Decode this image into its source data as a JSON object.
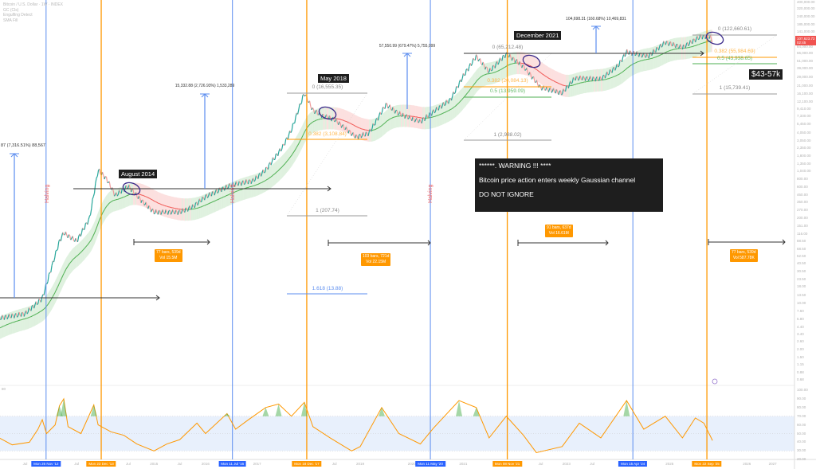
{
  "legend": {
    "symbol": "Bitcoin / U.S. Dollar · 1W · INDEX",
    "indicators": [
      "GC (Cls)",
      "Engulfing Detect",
      "SMA Fill"
    ]
  },
  "colors": {
    "halving_line": "#5b8def",
    "cycle_top_line": "#ff9800",
    "channel_up": "#4caf50",
    "channel_down": "#f05350",
    "rsi_line": "#ff9800",
    "rsi_band": "#e8f0fc",
    "ellipse": "#3a2a8a",
    "price_badge": "#f05350"
  },
  "annotations": {
    "halving_label": "Halving",
    "tags": {
      "aug2014": "August 2014",
      "may2018": "May 2018",
      "dec2021": "December 2021",
      "target": "$43-57k"
    },
    "warning": {
      "line1": "******. WARNING !!! ****",
      "line2": "Bitcoin price action enters weekly Gaussian channel",
      "line3": "DO NOT IGNORE"
    },
    "rallies": [
      "87 (7,316.51%) 88,567",
      "15,332.88 (2,726.93%) 1,533,289",
      "57,550.99 (679.47%) 5,755,099",
      "104,698.31 (160.68%) 10,469,831"
    ],
    "fib_2017": [
      "0 (16,555.35)",
      "0.382 (3,108.84)",
      "1 (207.74)",
      "1.618 (13.88)"
    ],
    "fib_2021": [
      "0 (65,212.48)",
      "0.382 (20,084.13)",
      "0.5 (13,959.09)",
      "1 (2,988.02)"
    ],
    "fib_2025": [
      "0 (122,660.61)",
      "0.382 (55,984.69)",
      "0.5 (43,938.65)",
      "1 (15,739.41)"
    ],
    "measures": [
      {
        "bars": "77 bars, 539d",
        "vol": "Vol 15.5M"
      },
      {
        "bars": "103 bars, 721d",
        "vol": "Vol 22.15M"
      },
      {
        "bars": "91 bars, 637d",
        "vol": "Vol 16.61M"
      },
      {
        "bars": "77 bars, 539d",
        "vol": "Vol 587.78K"
      }
    ]
  },
  "price_axis": {
    "labels": [
      "400,000.00",
      "320,000.00",
      "240,000.00",
      "185,000.00",
      "141,000.00",
      "84,000.00",
      "66,000.00",
      "51,000.00",
      "39,000.00",
      "29,000.00",
      "21,000.00",
      "16,100.00",
      "12,100.00",
      "9,410.00",
      "7,330.00",
      "5,450.00",
      "4,050.00",
      "3,050.00",
      "2,350.00",
      "1,800.00",
      "1,350.00",
      "1,040.00",
      "800.00",
      "600.00",
      "460.00",
      "350.00",
      "270.00",
      "200.00",
      "151.00",
      "116.00",
      "88.50",
      "68.50",
      "52.50",
      "40.50",
      "30.50",
      "23.50",
      "18.00",
      "13.50",
      "10.00",
      "7.60",
      "5.80",
      "4.40",
      "3.40",
      "2.60",
      "2.00",
      "1.50",
      "1.15",
      "0.88",
      "0.68"
    ],
    "current_price": "107,623.72",
    "current_sub": "02:45"
  },
  "rsi_axis": {
    "labels": [
      "100.00",
      "90.00",
      "80.00",
      "70.00",
      "60.00",
      "50.00",
      "40.00",
      "30.00",
      "20.00"
    ],
    "pane_label": "80"
  },
  "time_axis": {
    "ticks": [
      {
        "label": "Jul",
        "date": "2012-07"
      },
      {
        "label": "Jul",
        "date": "2013-07"
      },
      {
        "label": "Jul",
        "date": "2014-07"
      },
      {
        "label": "2015",
        "date": "2015-01"
      },
      {
        "label": "Jul",
        "date": "2015-07"
      },
      {
        "label": "2016",
        "date": "2016-01"
      },
      {
        "label": "2017",
        "date": "2017-01"
      },
      {
        "label": "Jul",
        "date": "2018-07"
      },
      {
        "label": "2019",
        "date": "2019-01"
      },
      {
        "label": "2020",
        "date": "2020-01"
      },
      {
        "label": "2021",
        "date": "2021-01"
      },
      {
        "label": "Jul",
        "date": "2022-07"
      },
      {
        "label": "2023",
        "date": "2023-01"
      },
      {
        "label": "Jul",
        "date": "2023-07"
      },
      {
        "label": "2025",
        "date": "2025-01"
      },
      {
        "label": "2026",
        "date": "2026-07"
      },
      {
        "label": "2027",
        "date": "2027-01"
      }
    ],
    "halvings": [
      {
        "label": "Mon 26 Nov '12",
        "date": "2012-11-28"
      },
      {
        "label": "Mon 11 Jul '16",
        "date": "2016-07-09"
      },
      {
        "label": "Mon 11 May '20",
        "date": "2020-05-11"
      },
      {
        "label": "Mon 15 Apr '24",
        "date": "2024-04-15"
      }
    ],
    "cycle_tops": [
      {
        "label": "Mon 23 Dec '13",
        "date": "2013-12-23"
      },
      {
        "label": "Mon 18 Dec '17",
        "date": "2017-12-18"
      },
      {
        "label": "Mon 08 Nov '21",
        "date": "2021-11-08"
      },
      {
        "label": "Mon 22 Sep '25",
        "date": "2025-09-22"
      }
    ]
  },
  "chart_data": {
    "type": "line",
    "y_scale": "log",
    "ylim": [
      0.68,
      400000
    ],
    "xlim": [
      "2012-01",
      "2027-07"
    ],
    "grid": false,
    "series": [
      {
        "values": [
          [
            "2012-01",
            6
          ],
          [
            "2012-07",
            7
          ],
          [
            "2012-11",
            12
          ],
          [
            "2013-03",
            90
          ],
          [
            "2013-04",
            120
          ],
          [
            "2013-07",
            90
          ],
          [
            "2013-10",
            200
          ],
          [
            "2013-12",
            1100
          ],
          [
            "2014-02",
            800
          ],
          [
            "2014-04",
            450
          ],
          [
            "2014-07",
            620
          ],
          [
            "2014-10",
            380
          ],
          [
            "2015-01",
            250
          ],
          [
            "2015-07",
            250
          ],
          [
            "2015-10",
            300
          ],
          [
            "2016-01",
            430
          ],
          [
            "2016-07",
            650
          ],
          [
            "2016-12",
            750
          ],
          [
            "2017-03",
            1100
          ],
          [
            "2017-07",
            2500
          ],
          [
            "2017-09",
            4500
          ],
          [
            "2017-12",
            16500
          ],
          [
            "2018-02",
            9000
          ],
          [
            "2018-04",
            7500
          ],
          [
            "2018-07",
            6500
          ],
          [
            "2018-12",
            3500
          ],
          [
            "2019-03",
            4000
          ],
          [
            "2019-07",
            11000
          ],
          [
            "2019-10",
            8000
          ],
          [
            "2020-03",
            6000
          ],
          [
            "2020-07",
            9500
          ],
          [
            "2020-10",
            13000
          ],
          [
            "2021-01",
            30000
          ],
          [
            "2021-04",
            60000
          ],
          [
            "2021-07",
            35000
          ],
          [
            "2021-11",
            65000
          ],
          [
            "2022-03",
            42000
          ],
          [
            "2022-07",
            20000
          ],
          [
            "2022-12",
            16500
          ],
          [
            "2023-03",
            28000
          ],
          [
            "2023-09",
            27000
          ],
          [
            "2024-01",
            43000
          ],
          [
            "2024-03",
            70000
          ],
          [
            "2024-08",
            60000
          ],
          [
            "2024-12",
            98000
          ],
          [
            "2025-04",
            82000
          ],
          [
            "2025-08",
            118000
          ],
          [
            "2025-10",
            122000
          ],
          [
            "2025-11",
            107000
          ]
        ]
      }
    ],
    "rsi": [
      [
        "2012-01",
        45
      ],
      [
        "2012-04",
        37
      ],
      [
        "2012-08",
        40
      ],
      [
        "2012-10",
        55
      ],
      [
        "2012-11",
        66
      ],
      [
        "2012-12",
        50
      ],
      [
        "2013-02",
        60
      ],
      [
        "2013-03",
        82
      ],
      [
        "2013-04",
        90
      ],
      [
        "2013-05",
        58
      ],
      [
        "2013-08",
        50
      ],
      [
        "2013-11",
        83
      ],
      [
        "2013-12",
        60
      ],
      [
        "2014-03",
        52
      ],
      [
        "2014-06",
        48
      ],
      [
        "2014-09",
        38
      ],
      [
        "2015-01",
        30
      ],
      [
        "2015-04",
        38
      ],
      [
        "2015-07",
        43
      ],
      [
        "2015-11",
        62
      ],
      [
        "2016-01",
        50
      ],
      [
        "2016-06",
        73
      ],
      [
        "2016-08",
        55
      ],
      [
        "2016-11",
        66
      ],
      [
        "2017-03",
        80
      ],
      [
        "2017-06",
        84
      ],
      [
        "2017-09",
        70
      ],
      [
        "2017-12",
        86
      ],
      [
        "2018-02",
        58
      ],
      [
        "2018-06",
        45
      ],
      [
        "2018-11",
        30
      ],
      [
        "2019-01",
        35
      ],
      [
        "2019-06",
        80
      ],
      [
        "2019-10",
        50
      ],
      [
        "2020-03",
        38
      ],
      [
        "2020-06",
        56
      ],
      [
        "2020-12",
        88
      ],
      [
        "2021-04",
        80
      ],
      [
        "2021-07",
        45
      ],
      [
        "2021-11",
        70
      ],
      [
        "2022-03",
        48
      ],
      [
        "2022-06",
        28
      ],
      [
        "2022-12",
        35
      ],
      [
        "2023-04",
        62
      ],
      [
        "2023-09",
        45
      ],
      [
        "2024-03",
        88
      ],
      [
        "2024-07",
        55
      ],
      [
        "2024-12",
        70
      ],
      [
        "2025-04",
        45
      ],
      [
        "2025-07",
        68
      ],
      [
        "2025-09",
        62
      ],
      [
        "2025-11",
        42
      ]
    ],
    "rsi_band": [
      30,
      70
    ]
  }
}
